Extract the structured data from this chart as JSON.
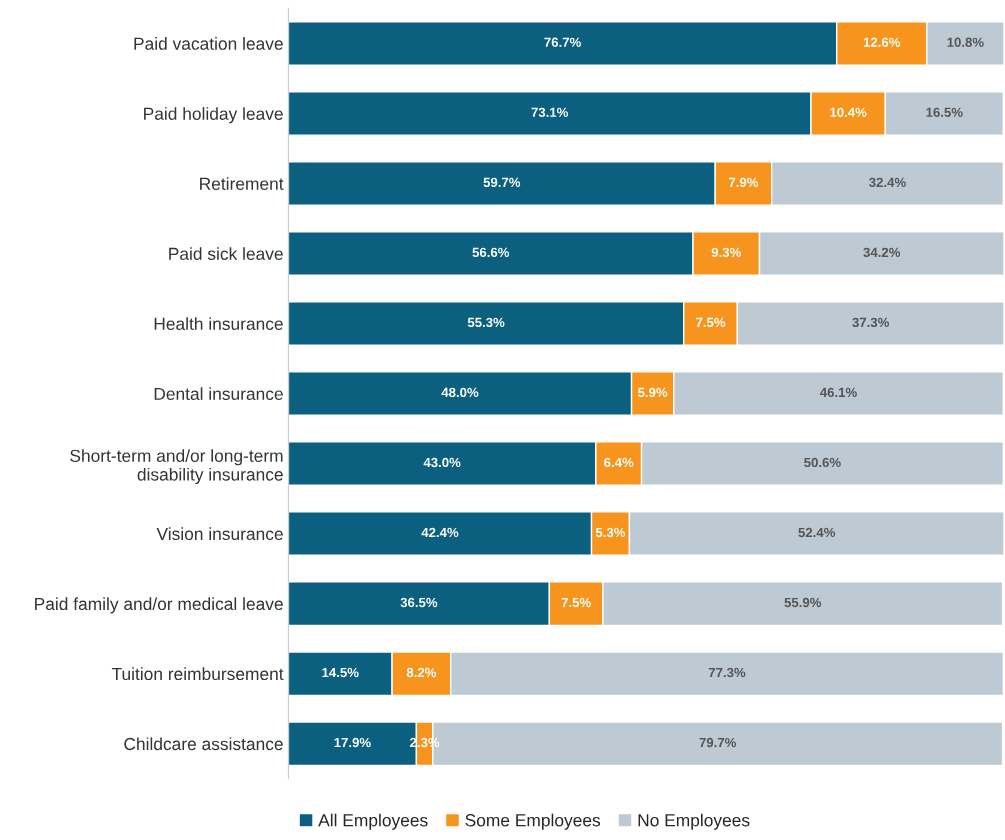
{
  "chart_data": {
    "type": "bar",
    "orientation": "horizontal",
    "stacked": true,
    "legend": "bottom",
    "grid": false,
    "tick_labels": "y",
    "categories": [
      "Paid vacation leave",
      "Paid holiday leave",
      "Retirement",
      "Paid sick leave",
      "Health insurance",
      "Dental insurance",
      "Short-term and/or long-term\ndisability insurance",
      "Vision insurance",
      "Paid family and/or medical leave",
      "Tuition reimbursement",
      "Childcare assistance"
    ],
    "series": [
      {
        "name": "All Employees",
        "color": "#0b5f7f",
        "values": [
          76.7,
          73.1,
          59.7,
          56.6,
          55.3,
          48.0,
          43.0,
          42.4,
          36.5,
          14.5,
          17.9
        ],
        "value_labels": [
          "76.7%",
          "73.1%",
          "59.7%",
          "56.6%",
          "55.3%",
          "48.0%",
          "43.0%",
          "42.4%",
          "36.5%",
          "14.5%",
          "17.9%"
        ]
      },
      {
        "name": "Some Employees",
        "color": "#f7941d",
        "values": [
          12.6,
          10.4,
          7.9,
          9.3,
          7.5,
          5.9,
          6.4,
          5.3,
          7.5,
          8.2,
          2.3
        ],
        "value_labels": [
          "12.6%",
          "10.4%",
          "7.9%",
          "9.3%",
          "7.5%",
          "5.9%",
          "6.4%",
          "5.3%",
          "7.5%",
          "8.2%",
          "2.3%"
        ]
      },
      {
        "name": "No Employees",
        "color": "#bdc9d3",
        "values": [
          10.8,
          16.5,
          32.4,
          34.2,
          37.3,
          46.1,
          50.6,
          52.4,
          55.9,
          77.3,
          79.7
        ],
        "value_labels": [
          "10.8%",
          "16.5%",
          "32.4%",
          "34.2%",
          "37.3%",
          "46.1%",
          "50.6%",
          "52.4%",
          "55.9%",
          "77.3%",
          "79.7%"
        ]
      }
    ]
  }
}
